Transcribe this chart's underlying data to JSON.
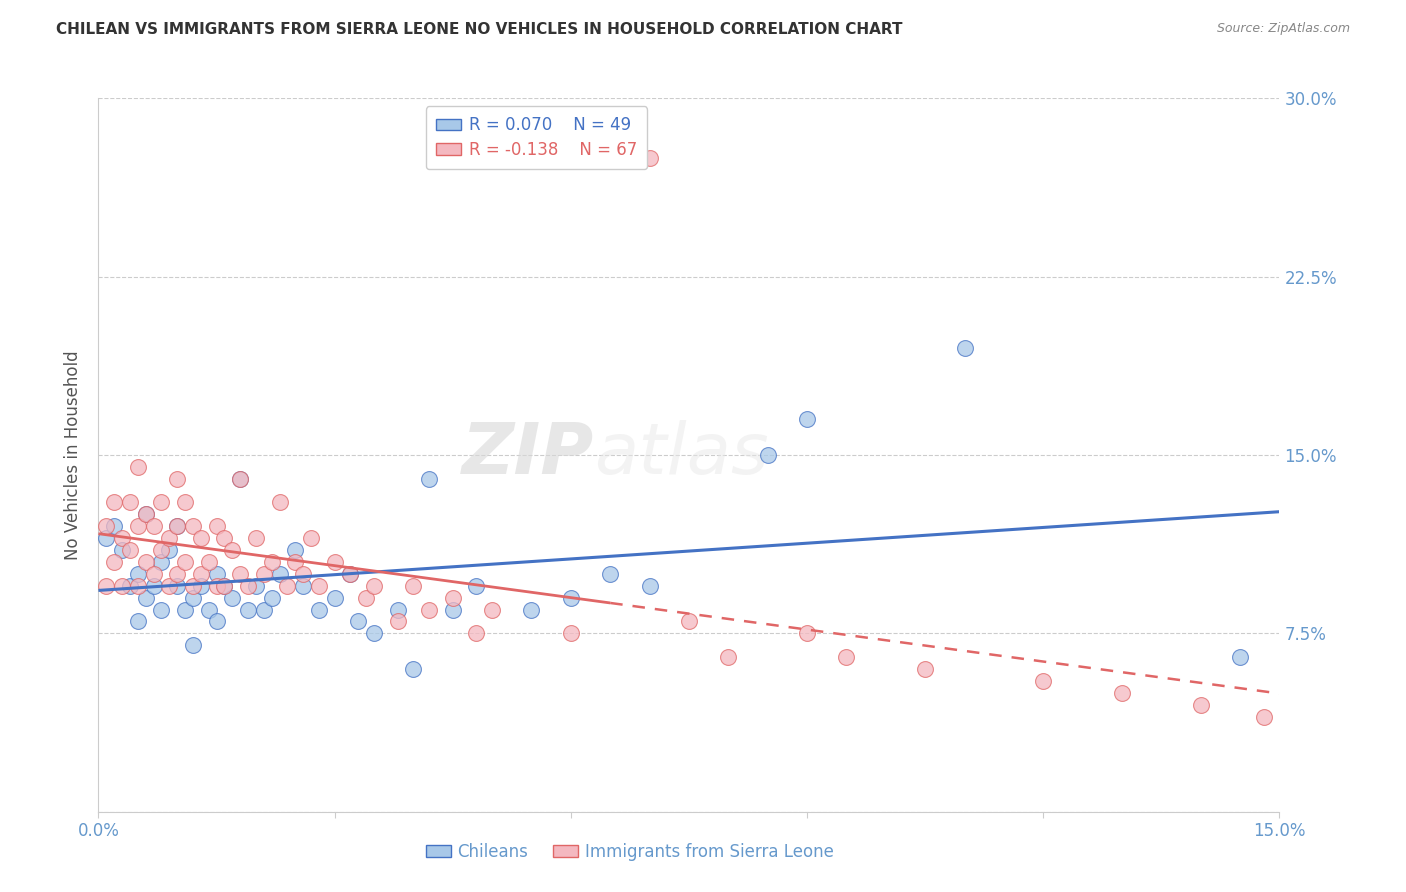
{
  "title": "CHILEAN VS IMMIGRANTS FROM SIERRA LEONE NO VEHICLES IN HOUSEHOLD CORRELATION CHART",
  "source": "Source: ZipAtlas.com",
  "ylabel": "No Vehicles in Household",
  "x_tick_labels": [
    "0.0%",
    "",
    "",
    "",
    "",
    "15.0%"
  ],
  "y_tick_labels_right": [
    "",
    "7.5%",
    "15.0%",
    "22.5%",
    "30.0%"
  ],
  "xlim": [
    0.0,
    0.15
  ],
  "ylim": [
    0.0,
    0.3
  ],
  "legend_r1": "R = 0.070",
  "legend_n1": "N = 49",
  "legend_r2": "R = -0.138",
  "legend_n2": "N = 67",
  "color_blue": "#a8c8e8",
  "color_pink": "#f4b8c0",
  "color_blue_line": "#4472c4",
  "color_pink_line": "#e06666",
  "title_color": "#333333",
  "axis_color": "#6699cc",
  "background_color": "#ffffff",
  "watermark_1": "ZIP",
  "watermark_2": "atlas",
  "chileans_x": [
    0.001,
    0.002,
    0.003,
    0.004,
    0.005,
    0.005,
    0.006,
    0.006,
    0.007,
    0.008,
    0.008,
    0.009,
    0.01,
    0.01,
    0.011,
    0.012,
    0.012,
    0.013,
    0.014,
    0.015,
    0.015,
    0.016,
    0.017,
    0.018,
    0.019,
    0.02,
    0.021,
    0.022,
    0.023,
    0.025,
    0.026,
    0.028,
    0.03,
    0.032,
    0.033,
    0.035,
    0.038,
    0.04,
    0.042,
    0.045,
    0.048,
    0.055,
    0.06,
    0.065,
    0.07,
    0.085,
    0.09,
    0.11,
    0.145
  ],
  "chileans_y": [
    0.115,
    0.12,
    0.11,
    0.095,
    0.1,
    0.08,
    0.125,
    0.09,
    0.095,
    0.105,
    0.085,
    0.11,
    0.12,
    0.095,
    0.085,
    0.09,
    0.07,
    0.095,
    0.085,
    0.1,
    0.08,
    0.095,
    0.09,
    0.14,
    0.085,
    0.095,
    0.085,
    0.09,
    0.1,
    0.11,
    0.095,
    0.085,
    0.09,
    0.1,
    0.08,
    0.075,
    0.085,
    0.06,
    0.14,
    0.085,
    0.095,
    0.085,
    0.09,
    0.1,
    0.095,
    0.15,
    0.165,
    0.195,
    0.065
  ],
  "sierra_leone_x": [
    0.001,
    0.001,
    0.002,
    0.002,
    0.003,
    0.003,
    0.004,
    0.004,
    0.005,
    0.005,
    0.005,
    0.006,
    0.006,
    0.007,
    0.007,
    0.008,
    0.008,
    0.009,
    0.009,
    0.01,
    0.01,
    0.01,
    0.011,
    0.011,
    0.012,
    0.012,
    0.013,
    0.013,
    0.014,
    0.015,
    0.015,
    0.016,
    0.016,
    0.017,
    0.018,
    0.018,
    0.019,
    0.02,
    0.021,
    0.022,
    0.023,
    0.024,
    0.025,
    0.026,
    0.027,
    0.028,
    0.03,
    0.032,
    0.034,
    0.035,
    0.038,
    0.04,
    0.042,
    0.045,
    0.048,
    0.05,
    0.06,
    0.07,
    0.075,
    0.08,
    0.09,
    0.095,
    0.105,
    0.12,
    0.13,
    0.14,
    0.148
  ],
  "sierra_leone_y": [
    0.12,
    0.095,
    0.13,
    0.105,
    0.115,
    0.095,
    0.13,
    0.11,
    0.145,
    0.12,
    0.095,
    0.125,
    0.105,
    0.12,
    0.1,
    0.13,
    0.11,
    0.115,
    0.095,
    0.14,
    0.12,
    0.1,
    0.13,
    0.105,
    0.12,
    0.095,
    0.115,
    0.1,
    0.105,
    0.12,
    0.095,
    0.115,
    0.095,
    0.11,
    0.14,
    0.1,
    0.095,
    0.115,
    0.1,
    0.105,
    0.13,
    0.095,
    0.105,
    0.1,
    0.115,
    0.095,
    0.105,
    0.1,
    0.09,
    0.095,
    0.08,
    0.095,
    0.085,
    0.09,
    0.075,
    0.085,
    0.075,
    0.275,
    0.08,
    0.065,
    0.075,
    0.065,
    0.06,
    0.055,
    0.05,
    0.045,
    0.04
  ]
}
